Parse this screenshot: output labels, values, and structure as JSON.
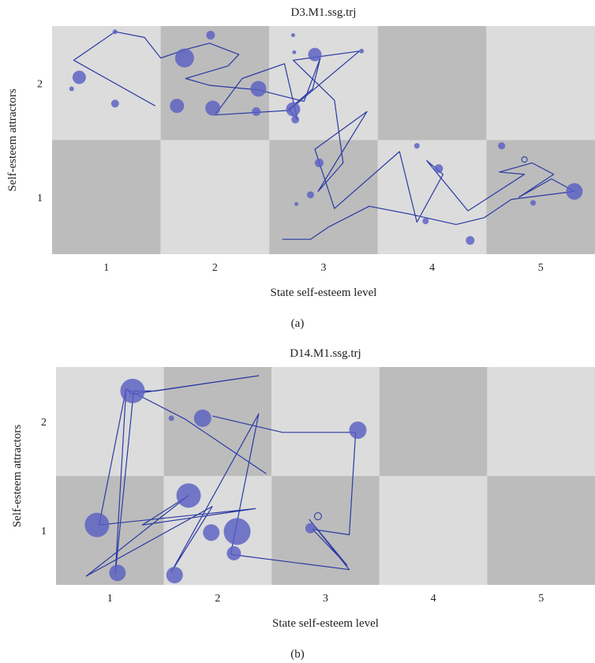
{
  "colors": {
    "cell_light": "#dcdcdc",
    "cell_dark": "#bcbcbc",
    "line": "#2b3aa3",
    "marker_fill": "#5a5fc2",
    "marker_opacity": 0.82
  },
  "chart_data": [
    {
      "type": "scatter",
      "title": "D3.M1.ssg.trj",
      "xlabel": "State self-esteem level",
      "ylabel": "Self-esteem attractors",
      "caption": "(a)",
      "xlim": [
        0.5,
        5.5
      ],
      "ylim": [
        0.5,
        2.5
      ],
      "xticks": [
        "1",
        "2",
        "3",
        "4",
        "5"
      ],
      "yticks": [
        "1",
        "2"
      ],
      "grid": "checkerboard",
      "path": [
        [
          1.45,
          1.8
        ],
        [
          0.7,
          2.2
        ],
        [
          1.08,
          2.45
        ],
        [
          1.35,
          2.4
        ],
        [
          1.5,
          2.22
        ],
        [
          1.75,
          2.3
        ],
        [
          1.95,
          2.35
        ],
        [
          2.22,
          2.25
        ],
        [
          2.12,
          2.15
        ],
        [
          1.73,
          2.04
        ],
        [
          1.95,
          1.98
        ],
        [
          2.4,
          1.94
        ],
        [
          2.82,
          1.84
        ],
        [
          2.97,
          2.22
        ],
        [
          2.9,
          1.95
        ],
        [
          2.68,
          1.77
        ],
        [
          2.76,
          1.68
        ],
        [
          2.64,
          2.17
        ],
        [
          2.25,
          2.04
        ],
        [
          2.0,
          1.72
        ],
        [
          2.68,
          1.76
        ],
        [
          3.33,
          2.28
        ],
        [
          2.72,
          2.2
        ],
        [
          3.1,
          1.85
        ],
        [
          3.18,
          1.3
        ],
        [
          2.95,
          1.05
        ],
        [
          3.4,
          1.75
        ],
        [
          2.92,
          1.42
        ],
        [
          3.1,
          0.9
        ],
        [
          3.7,
          1.4
        ],
        [
          3.86,
          0.78
        ],
        [
          4.1,
          1.2
        ],
        [
          3.95,
          1.32
        ],
        [
          4.33,
          0.88
        ],
        [
          4.85,
          1.2
        ],
        [
          4.62,
          1.22
        ],
        [
          4.92,
          1.3
        ],
        [
          5.12,
          1.2
        ],
        [
          4.8,
          1.0
        ],
        [
          5.1,
          1.16
        ],
        [
          5.31,
          1.05
        ],
        [
          4.73,
          0.98
        ],
        [
          4.48,
          0.82
        ],
        [
          4.22,
          0.76
        ],
        [
          3.8,
          0.85
        ],
        [
          3.42,
          0.92
        ],
        [
          3.05,
          0.74
        ],
        [
          2.88,
          0.63
        ],
        [
          2.62,
          0.63
        ]
      ],
      "markers": [
        {
          "x": 0.75,
          "y": 2.05,
          "size": 17
        },
        {
          "x": 0.68,
          "y": 1.95,
          "size": 6
        },
        {
          "x": 1.08,
          "y": 2.45,
          "size": 6
        },
        {
          "x": 1.08,
          "y": 1.82,
          "size": 10
        },
        {
          "x": 1.65,
          "y": 1.8,
          "size": 18
        },
        {
          "x": 1.72,
          "y": 2.22,
          "size": 24
        },
        {
          "x": 1.96,
          "y": 2.42,
          "size": 11
        },
        {
          "x": 1.98,
          "y": 1.78,
          "size": 19
        },
        {
          "x": 2.4,
          "y": 1.95,
          "size": 20
        },
        {
          "x": 2.38,
          "y": 1.75,
          "size": 11
        },
        {
          "x": 2.72,
          "y": 1.77,
          "size": 18
        },
        {
          "x": 2.74,
          "y": 1.68,
          "size": 10
        },
        {
          "x": 2.72,
          "y": 2.42,
          "size": 5
        },
        {
          "x": 2.73,
          "y": 2.27,
          "size": 5
        },
        {
          "x": 2.92,
          "y": 2.25,
          "size": 17
        },
        {
          "x": 3.35,
          "y": 2.28,
          "size": 6
        },
        {
          "x": 2.96,
          "y": 1.3,
          "size": 11
        },
        {
          "x": 2.88,
          "y": 1.02,
          "size": 9
        },
        {
          "x": 2.75,
          "y": 0.94,
          "size": 5
        },
        {
          "x": 3.86,
          "y": 1.45,
          "size": 7
        },
        {
          "x": 4.06,
          "y": 1.25,
          "size": 11
        },
        {
          "x": 3.94,
          "y": 0.79,
          "size": 8
        },
        {
          "x": 4.35,
          "y": 0.62,
          "size": 11
        },
        {
          "x": 4.64,
          "y": 1.45,
          "size": 9
        },
        {
          "x": 4.85,
          "y": 1.33,
          "size": 7,
          "hollow": true
        },
        {
          "x": 4.93,
          "y": 0.95,
          "size": 7
        },
        {
          "x": 5.31,
          "y": 1.05,
          "size": 21
        }
      ]
    },
    {
      "type": "scatter",
      "title": "D14.M1.ssg.trj",
      "xlabel": "State self-esteem level",
      "ylabel": "Self-esteem attractors",
      "caption": "(b)",
      "xlim": [
        0.5,
        5.5
      ],
      "ylim": [
        0.5,
        2.5
      ],
      "xticks": [
        "1",
        "2",
        "3",
        "4",
        "5"
      ],
      "yticks": [
        "1",
        "2"
      ],
      "grid": "checkerboard",
      "path": [
        [
          2.45,
          1.52
        ],
        [
          1.7,
          2.02
        ],
        [
          1.15,
          2.3
        ],
        [
          1.2,
          2.25
        ],
        [
          2.38,
          2.42
        ],
        [
          1.42,
          2.28
        ],
        [
          1.22,
          2.28
        ],
        [
          1.05,
          0.6
        ],
        [
          1.15,
          2.3
        ],
        [
          0.9,
          1.05
        ],
        [
          2.35,
          1.2
        ],
        [
          1.3,
          1.05
        ],
        [
          1.73,
          1.32
        ],
        [
          0.78,
          0.58
        ],
        [
          1.95,
          1.22
        ],
        [
          1.57,
          0.62
        ],
        [
          2.38,
          2.07
        ],
        [
          2.12,
          0.78
        ],
        [
          3.22,
          0.64
        ],
        [
          2.85,
          1.1
        ],
        [
          3.2,
          0.68
        ],
        [
          2.88,
          1.01
        ],
        [
          3.22,
          0.96
        ],
        [
          3.28,
          1.9
        ],
        [
          2.6,
          1.9
        ],
        [
          1.95,
          2.05
        ]
      ],
      "markers": [
        {
          "x": 1.21,
          "y": 2.28,
          "size": 31
        },
        {
          "x": 1.57,
          "y": 2.03,
          "size": 7
        },
        {
          "x": 1.86,
          "y": 2.03,
          "size": 22
        },
        {
          "x": 3.3,
          "y": 1.92,
          "size": 22
        },
        {
          "x": 0.88,
          "y": 1.05,
          "size": 31
        },
        {
          "x": 1.07,
          "y": 0.61,
          "size": 21
        },
        {
          "x": 1.6,
          "y": 0.59,
          "size": 21
        },
        {
          "x": 1.73,
          "y": 1.32,
          "size": 31
        },
        {
          "x": 1.94,
          "y": 0.98,
          "size": 21
        },
        {
          "x": 2.18,
          "y": 0.99,
          "size": 34
        },
        {
          "x": 2.15,
          "y": 0.79,
          "size": 18
        },
        {
          "x": 2.86,
          "y": 1.02,
          "size": 13
        },
        {
          "x": 2.93,
          "y": 1.13,
          "size": 9,
          "hollow": true
        }
      ]
    }
  ]
}
